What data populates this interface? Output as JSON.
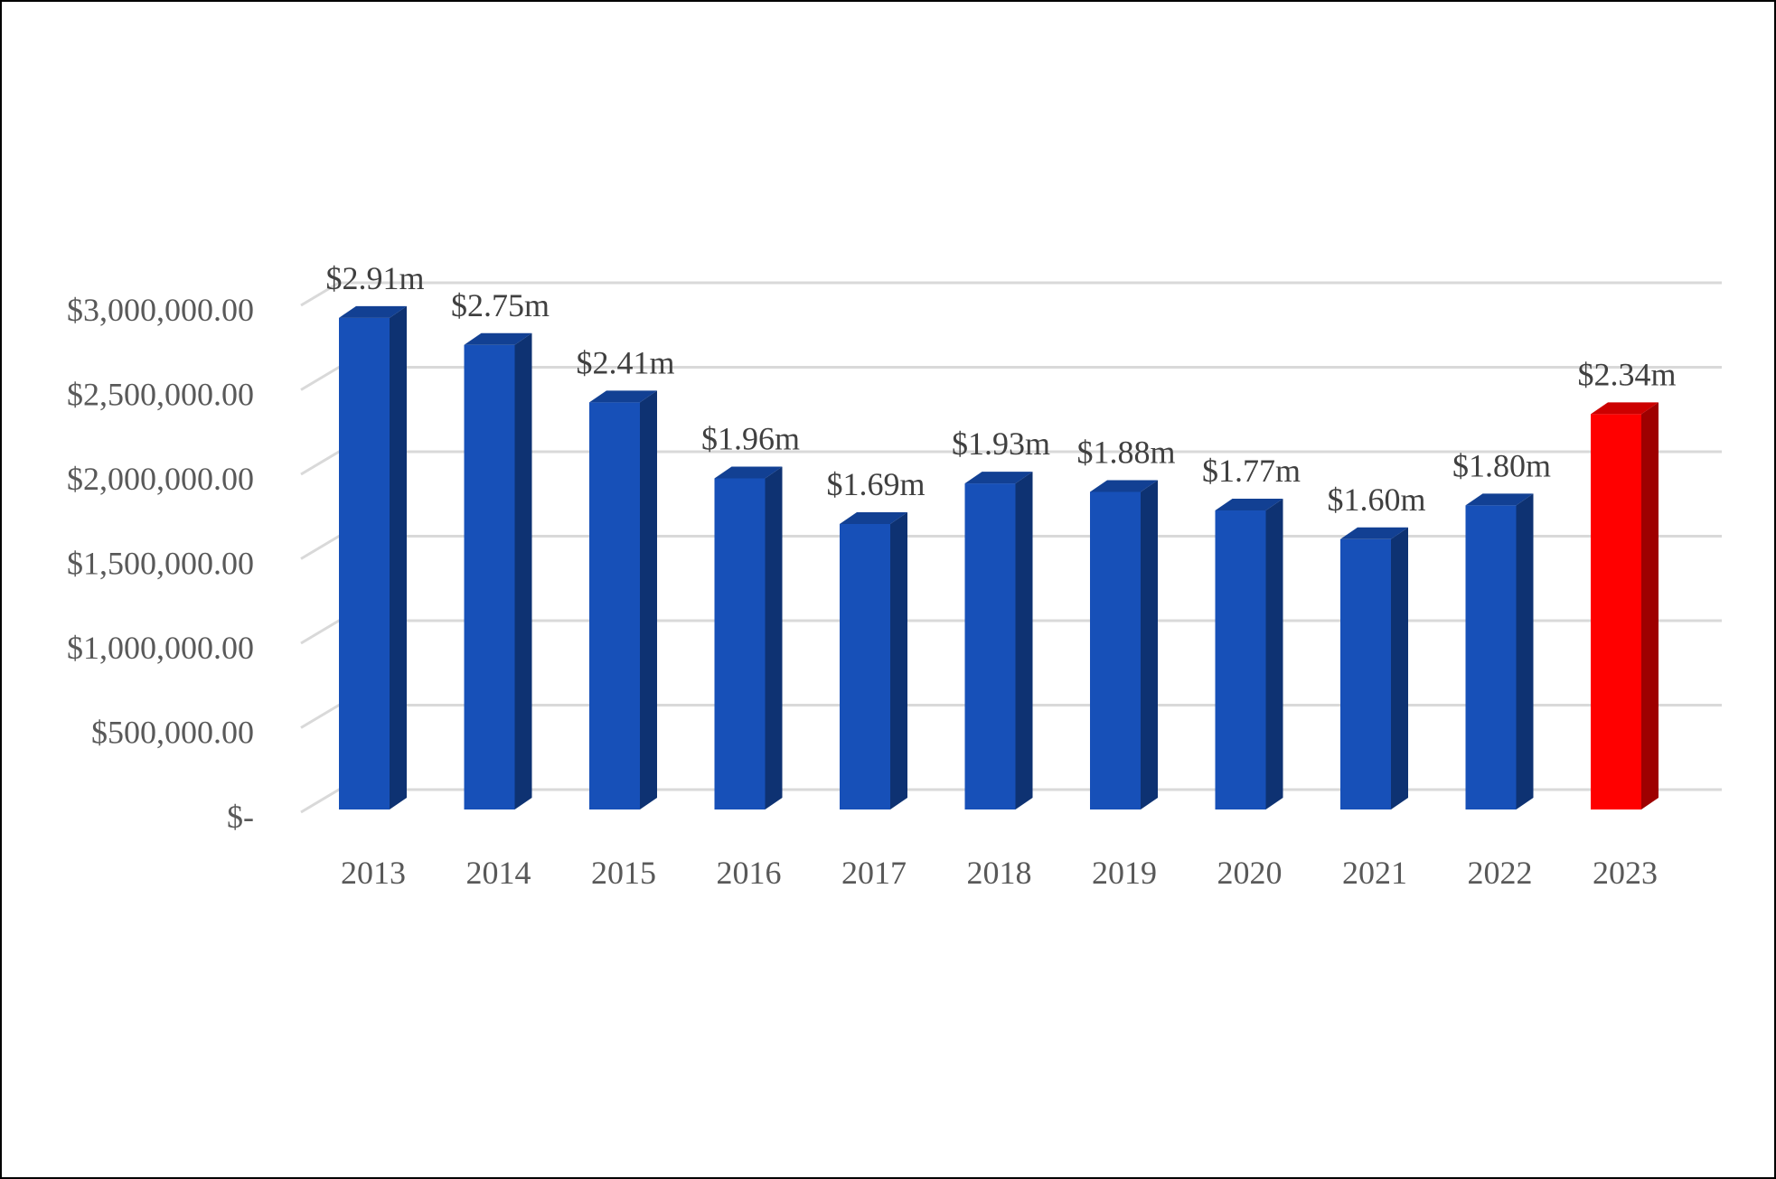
{
  "chart_data": {
    "type": "bar",
    "title": "",
    "xlabel": "",
    "ylabel": "",
    "categories": [
      "2013",
      "2014",
      "2015",
      "2016",
      "2017",
      "2018",
      "2019",
      "2020",
      "2021",
      "2022",
      "2023"
    ],
    "values": [
      2910000,
      2750000,
      2410000,
      1960000,
      1690000,
      1930000,
      1880000,
      1770000,
      1600000,
      1800000,
      2340000
    ],
    "data_labels": [
      "$2.91m",
      "$2.75m",
      "$2.41m",
      "$1.96m",
      "$1.69m",
      "$1.93m",
      "$1.88m",
      "$1.77m",
      "$1.60m",
      "$1.80m",
      "$2.34m"
    ],
    "ylim": [
      0,
      3000000
    ],
    "y_ticks": [
      0,
      500000,
      1000000,
      1500000,
      2000000,
      2500000,
      3000000
    ],
    "y_tick_labels": [
      "$-",
      "$500,000.00",
      "$1,000,000.00",
      "$1,500,000.00",
      "$2,000,000.00",
      "$2,500,000.00",
      "$3,000,000.00"
    ],
    "grid": true,
    "legend": "none",
    "style": "3d-column",
    "colors": {
      "default_bar": "#1750B8",
      "highlight_bar": "#FF0000",
      "highlight_index": 10,
      "gridline": "#D9D9D9"
    }
  }
}
